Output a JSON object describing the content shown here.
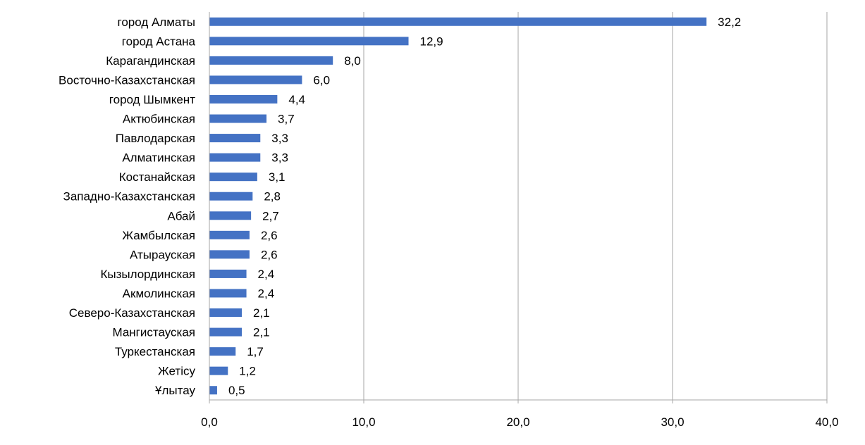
{
  "chart_data": {
    "type": "bar",
    "orientation": "horizontal",
    "title": "",
    "xlabel": "",
    "ylabel": "",
    "xlim": [
      0,
      40
    ],
    "ticks": [
      0,
      10,
      20,
      30,
      40
    ],
    "tick_labels": [
      "0,0",
      "10,0",
      "20,0",
      "30,0",
      "40,0"
    ],
    "grid": "vertical",
    "categories": [
      "город Алматы",
      "город Астана",
      "Карагандинская",
      "Восточно-Казахстанская",
      "город Шымкент",
      "Актюбинская",
      "Павлодарская",
      "Алматинская",
      "Костанайская",
      "Западно-Казахстанская",
      "Абай",
      "Жамбылская",
      "Атырауская",
      "Кызылординская",
      "Акмолинская",
      "Северо-Казахстанская",
      "Мангистауская",
      "Туркестанская",
      "Жетісу",
      "Ұлытау"
    ],
    "values": [
      32.2,
      12.9,
      8.0,
      6.0,
      4.4,
      3.7,
      3.3,
      3.3,
      3.1,
      2.8,
      2.7,
      2.6,
      2.6,
      2.4,
      2.4,
      2.1,
      2.1,
      1.7,
      1.2,
      0.5
    ],
    "value_labels": [
      "32,2",
      "12,9",
      "8,0",
      "6,0",
      "4,4",
      "3,7",
      "3,3",
      "3,3",
      "3,1",
      "2,8",
      "2,7",
      "2,6",
      "2,6",
      "2,4",
      "2,4",
      "2,1",
      "2,1",
      "1,7",
      "1,2",
      "0,5"
    ],
    "bar_color": "#4472C4",
    "grid_color": "#A6A6A6",
    "axis_color": "#A6A6A6"
  }
}
